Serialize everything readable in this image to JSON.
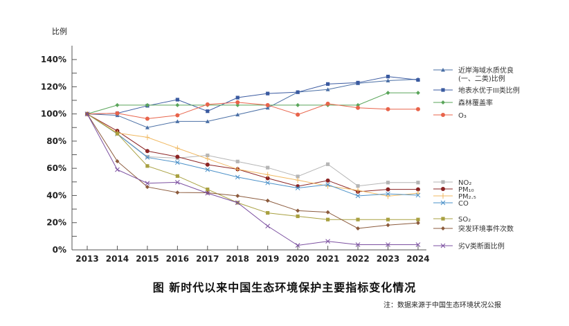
{
  "chart_data": {
    "type": "line",
    "title": "图 新时代以来中国生态环境保护主要指标变化情况",
    "note": "注：数据来源于中国生态环境状况公报",
    "ylabel": "比例",
    "ylim": [
      0,
      140
    ],
    "yticks": [
      "0%",
      "20%",
      "40%",
      "60%",
      "80%",
      "100%",
      "120%",
      "140%"
    ],
    "ytick_values": [
      0,
      20,
      40,
      60,
      80,
      100,
      120,
      140
    ],
    "x": [
      "2013",
      "2014",
      "2015",
      "2016",
      "2017",
      "2018",
      "2019",
      "2020",
      "2021",
      "2022",
      "2023",
      "2024"
    ],
    "legend_placement": "right",
    "grid": false,
    "series": [
      {
        "name": "近岸海域水质优良\n(一、二类)比例",
        "color": "#4a6fa5",
        "marker": "triangle",
        "values": [
          100,
          99,
          90,
          94.5,
          94.5,
          99.5,
          104.5,
          116,
          118,
          122.5,
          124.5,
          125.5
        ]
      },
      {
        "name": "地表水优于III类比例",
        "color": "#3a5aa0",
        "marker": "square",
        "values": [
          100,
          100.5,
          106,
          110.5,
          102,
          112,
          115,
          116,
          122,
          123,
          127.5,
          125
        ]
      },
      {
        "name": "森林覆盖率",
        "color": "#5aa55a",
        "marker": "diamond",
        "values": [
          100,
          106.5,
          106.5,
          106.5,
          106.5,
          106.5,
          106.5,
          106.5,
          106.5,
          106.5,
          115.5,
          115.5
        ]
      },
      {
        "name": "O₃",
        "color": "#e8634a",
        "marker": "circle",
        "values": [
          100,
          100.5,
          96.5,
          99,
          107,
          108.5,
          106.5,
          99.5,
          107.5,
          104.5,
          103.5,
          103.5
        ]
      },
      {
        "name": "NO₂",
        "color": "#b5b5b5",
        "marker": "square",
        "values": [
          100,
          85.5,
          68.5,
          67.5,
          69.5,
          65,
          60.5,
          54,
          63,
          47,
          49.5,
          49.5
        ]
      },
      {
        "name": "PM₁₀",
        "color": "#8b2323",
        "marker": "circle",
        "values": [
          100,
          87.5,
          72.7,
          68.5,
          62.7,
          59.3,
          52.7,
          46.8,
          51,
          42.8,
          44.5,
          44.5
        ]
      },
      {
        "name": "PM₂.₅",
        "color": "#f0b860",
        "marker": "plus",
        "values": [
          100,
          86,
          82.8,
          74.8,
          67,
          59.3,
          55.3,
          51.3,
          47,
          43.8,
          39.5,
          41.7
        ]
      },
      {
        "name": "CO",
        "color": "#4a90c8",
        "marker": "x",
        "values": [
          100,
          85.3,
          68,
          64.3,
          59,
          53.5,
          49.3,
          45.5,
          48,
          39.7,
          41.2,
          40.2
        ]
      },
      {
        "name": "SO₂",
        "color": "#a8a040",
        "marker": "square",
        "values": [
          100,
          85.5,
          61.7,
          54.3,
          44.5,
          34.7,
          27.2,
          24.7,
          22.3,
          22.3,
          22.3,
          22.3
        ]
      },
      {
        "name": "突发环境事件次数",
        "color": "#8b5a3c",
        "marker": "diamond",
        "values": [
          100,
          65.2,
          46.3,
          42.2,
          42,
          39.7,
          36.2,
          28.8,
          27.7,
          15.8,
          18.2,
          19.8
        ]
      },
      {
        "name": "劣Ⅴ类断面比例",
        "color": "#7b4fa0",
        "marker": "x",
        "values": [
          100,
          59,
          49,
          49.7,
          41.7,
          34.7,
          17.5,
          3.3,
          6.3,
          3.8,
          3.8,
          3.8
        ]
      }
    ]
  }
}
